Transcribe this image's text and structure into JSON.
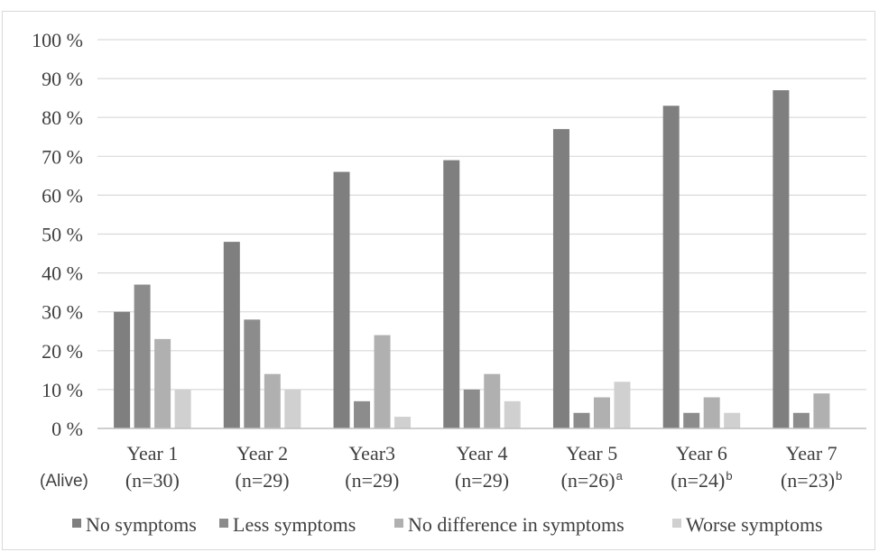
{
  "chart_data": {
    "type": "bar",
    "title": "",
    "xlabel": "",
    "ylabel": "",
    "ylim": [
      0,
      100
    ],
    "ytick_values": [
      0,
      10,
      20,
      30,
      40,
      50,
      60,
      70,
      80,
      90,
      100
    ],
    "ytick_labels": [
      "0 %",
      "10 %",
      "20 %",
      "30 %",
      "40 %",
      "50 %",
      "60 %",
      "70 %",
      "80 %",
      "90 %",
      "100 %"
    ],
    "grid": true,
    "legend_position": "bottom",
    "row_label": "(Alive)",
    "categories": [
      {
        "label": "Year 1",
        "n": "(n=30)",
        "sup": ""
      },
      {
        "label": "Year 2",
        "n": "(n=29)",
        "sup": ""
      },
      {
        "label": "Year3",
        "n": "(n=29)",
        "sup": ""
      },
      {
        "label": "Year 4",
        "n": "(n=29)",
        "sup": ""
      },
      {
        "label": "Year 5",
        "n": "(n=26)",
        "sup": "a"
      },
      {
        "label": "Year 6",
        "n": "(n=24)",
        "sup": "b"
      },
      {
        "label": "Year 7",
        "n": "(n=23)",
        "sup": "b"
      }
    ],
    "series": [
      {
        "name": "No symptoms",
        "color": "#7f7f7f",
        "values": [
          30,
          48,
          66,
          69,
          77,
          83,
          87
        ]
      },
      {
        "name": "Less symptoms",
        "color": "#8c8c8c",
        "values": [
          37,
          28,
          7,
          10,
          4,
          4,
          4
        ]
      },
      {
        "name": "No difference in symptoms",
        "color": "#b0b0b0",
        "values": [
          23,
          14,
          24,
          14,
          8,
          8,
          9
        ]
      },
      {
        "name": "Worse symptoms",
        "color": "#d0d0d0",
        "values": [
          10,
          10,
          3,
          7,
          12,
          4,
          0
        ]
      }
    ]
  }
}
